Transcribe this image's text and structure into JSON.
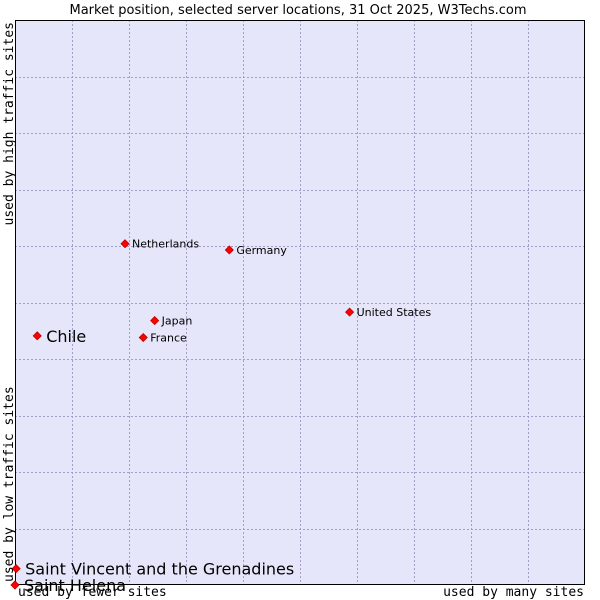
{
  "chart_data": {
    "type": "scatter",
    "title": "Market position, selected server locations, 31 Oct 2025, W3Techs.com",
    "xlabel_left": "used by fewer sites",
    "xlabel_right": "used by many sites",
    "ylabel_bottom": "used by low traffic sites",
    "ylabel_top": "used by high traffic sites",
    "xlim": [
      0,
      100
    ],
    "ylim": [
      0,
      100
    ],
    "grid": true,
    "colors": {
      "plot_bg": "#e6e6fa",
      "frame": "#000000",
      "marker": "#ff0000",
      "marker_stroke": "#c00000"
    },
    "points": [
      {
        "label": "Netherlands",
        "x": 19.3,
        "y": 60.4,
        "emphasis": false
      },
      {
        "label": "Germany",
        "x": 37.6,
        "y": 59.3,
        "emphasis": false
      },
      {
        "label": "United States",
        "x": 58.7,
        "y": 48.3,
        "emphasis": false
      },
      {
        "label": "Japan",
        "x": 24.5,
        "y": 46.8,
        "emphasis": false
      },
      {
        "label": "France",
        "x": 22.5,
        "y": 43.8,
        "emphasis": false
      },
      {
        "label": "Chile",
        "x": 3.9,
        "y": 44.1,
        "emphasis": true
      },
      {
        "label": "Saint Vincent and the Grenadines",
        "x": 0.2,
        "y": 2.9,
        "emphasis": true
      },
      {
        "label": "Saint Helena",
        "x": 0.0,
        "y": 0.0,
        "emphasis": true
      }
    ]
  }
}
